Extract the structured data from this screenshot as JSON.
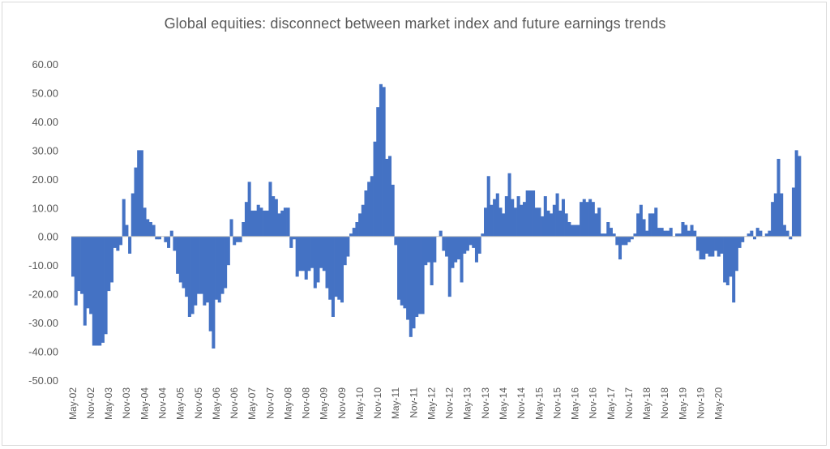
{
  "chart_data": {
    "type": "bar",
    "title": "Global equities: disconnect between market index and future earnings trends",
    "xlabel": "",
    "ylabel": "",
    "ylim": [
      -50,
      60
    ],
    "yticks": [
      "60.00",
      "50.00",
      "40.00",
      "30.00",
      "20.00",
      "10.00",
      "0.00",
      "-10.00",
      "-20.00",
      "-30.00",
      "-40.00",
      "-50.00"
    ],
    "x_tick_labels": [
      "May-02",
      "Nov-02",
      "May-03",
      "Nov-03",
      "May-04",
      "Nov-04",
      "May-05",
      "Nov-05",
      "May-06",
      "Nov-06",
      "May-07",
      "Nov-07",
      "May-08",
      "Nov-08",
      "May-09",
      "Nov-09",
      "May-10",
      "Nov-10",
      "May-11",
      "Nov-11",
      "May-12",
      "Nov-12",
      "May-13",
      "Nov-13",
      "May-14",
      "Nov-14",
      "May-15",
      "Nov-15",
      "May-16",
      "Nov-16",
      "May-17",
      "Nov-17",
      "May-18",
      "Nov-18",
      "May-19",
      "Nov-19",
      "May-20"
    ],
    "start_month": "May-02",
    "grid": false,
    "legend": "none",
    "series": [
      {
        "color": "#4472c4",
        "values": [
          -14,
          -24,
          -19,
          -20,
          -31,
          -25,
          -27,
          -38,
          -38,
          -38,
          -37,
          -34,
          -19,
          -16,
          -4,
          -5,
          -3,
          13,
          4,
          -6,
          15,
          24,
          30,
          30,
          10,
          6,
          5,
          4,
          -1,
          -1,
          0,
          -2,
          -4,
          2,
          -5,
          -13,
          -16,
          -18,
          -21,
          -28,
          -27,
          -24,
          -20,
          -20,
          -24,
          -23,
          -33,
          -39,
          -22,
          -23,
          -20,
          -18,
          -10,
          6,
          -3,
          -2,
          -2,
          5,
          12,
          19,
          9,
          9,
          11,
          10,
          9,
          9,
          19,
          14,
          13,
          8,
          9,
          10,
          10,
          -4,
          -1,
          -14,
          -12,
          -12,
          -15,
          -12,
          -11,
          -18,
          -16,
          -11,
          -12,
          -18,
          -22,
          -28,
          -21,
          -22,
          -23,
          -10,
          -7,
          1,
          3,
          5,
          8,
          11,
          16,
          19,
          21,
          33,
          45,
          53,
          52,
          27,
          28,
          18,
          -3,
          -22,
          -24,
          -25,
          -29,
          -35,
          -32,
          -28,
          -27,
          -27,
          -10,
          -9,
          -17,
          -9,
          0,
          2,
          -5,
          -7,
          -21,
          -11,
          -9,
          -8,
          -16,
          -6,
          -5,
          -3,
          -4,
          -9,
          -6,
          1,
          10,
          21,
          11,
          13,
          15,
          10,
          8,
          14,
          22,
          13,
          10,
          14,
          11,
          12,
          16,
          16,
          16,
          10,
          10,
          7,
          14,
          9,
          8,
          11,
          15,
          9,
          13,
          8,
          5,
          4,
          4,
          4,
          12,
          13,
          12,
          13,
          12,
          8,
          10,
          1,
          1,
          5,
          3,
          1,
          -3,
          -8,
          -3,
          -3,
          -2,
          -1,
          1,
          8,
          11,
          6,
          2,
          8,
          8,
          10,
          3,
          3,
          2,
          2,
          3,
          0,
          1,
          1,
          5,
          4,
          2,
          4,
          2,
          -5,
          -8,
          -8,
          -6,
          -7,
          -7,
          -5,
          -7,
          -6,
          -16,
          -17,
          -14,
          -23,
          -12,
          -4,
          -2,
          0,
          1,
          2,
          -1,
          3,
          2,
          0,
          1,
          2,
          12,
          15,
          27,
          15,
          4,
          2,
          -1,
          17,
          30,
          28
        ]
      }
    ]
  }
}
